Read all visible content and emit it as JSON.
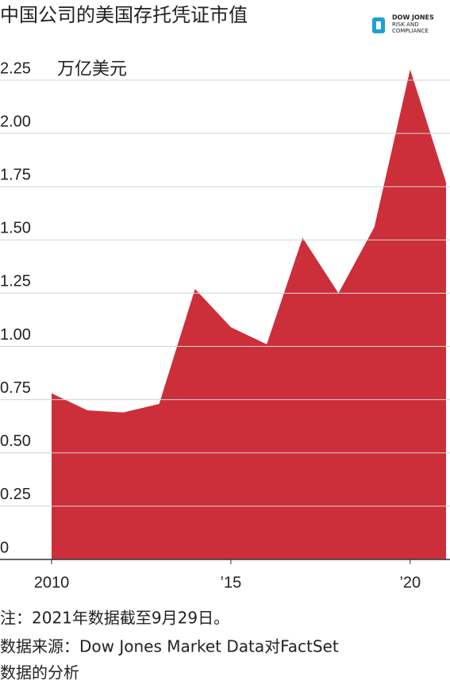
{
  "chart_data": {
    "type": "area",
    "title": "中国公司的美国存托凭证市值",
    "y_label": "万亿美元",
    "brand": [
      "DOW JONES",
      "RISK AND",
      "COMPLIANCE"
    ],
    "x": [
      2010,
      2011,
      2012,
      2013,
      2014,
      2015,
      2016,
      2017,
      2018,
      2019,
      2020,
      2021
    ],
    "series": [
      {
        "color": "#cc2f3a",
        "values": [
          0.78,
          0.7,
          0.69,
          0.73,
          1.27,
          1.09,
          1.01,
          1.51,
          1.25,
          1.56,
          2.3,
          1.77
        ]
      }
    ],
    "xlim": [
      2010,
      2021
    ],
    "xticks": [
      2010,
      {
        "value": 2015,
        "label": "’15"
      },
      {
        "value": 2020,
        "label": "’20"
      }
    ],
    "ylim": [
      0,
      2.25
    ],
    "yticks": [
      0,
      0.25,
      {
        "value": 0.5,
        "label": "0.50"
      },
      0.75,
      {
        "value": 1,
        "label": "1.00"
      },
      1.25,
      {
        "value": 1.5,
        "label": "1.50"
      },
      1.75,
      {
        "value": 2,
        "label": "2.00"
      },
      2.25
    ],
    "grid": true,
    "notes": [
      "注：2021年数据截至9月29日。",
      "数据来源：Dow Jones Market Data对FactSet",
      "数据的分析"
    ]
  }
}
